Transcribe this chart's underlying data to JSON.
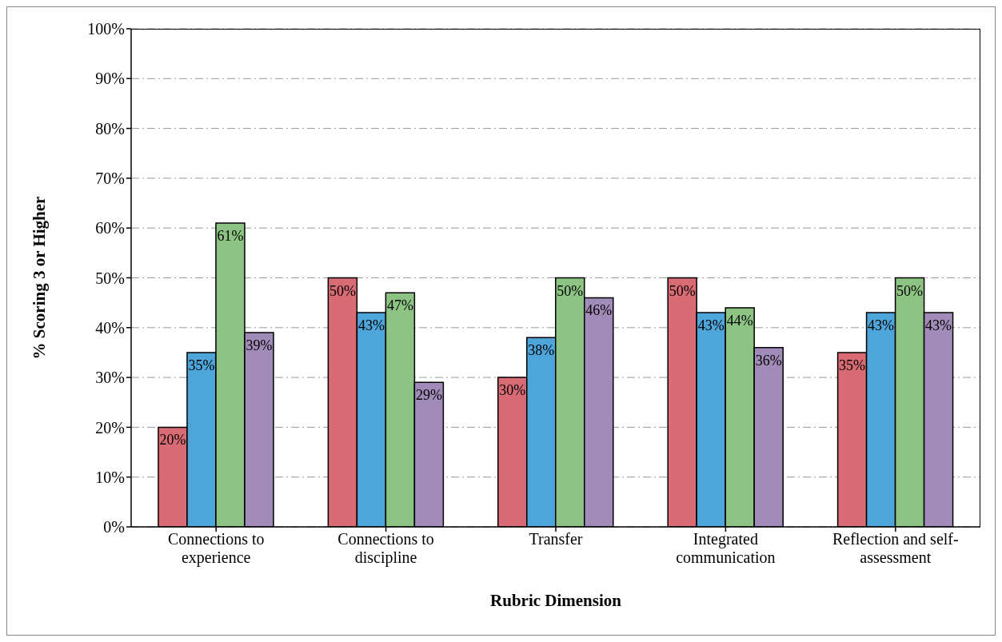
{
  "chart_data": {
    "type": "bar",
    "xlabel": "Rubric Dimension",
    "ylabel": "% Scoring 3 or Higher",
    "categories": [
      "Connections to experience",
      "Connections to discipline",
      "Transfer",
      "Integrated communication",
      "Reflection and self-assessment"
    ],
    "series": [
      {
        "color": "#d96b74",
        "values": [
          20,
          50,
          30,
          50,
          35
        ],
        "value_labels": [
          "20%",
          "50%",
          "30%",
          "50%",
          "35%"
        ]
      },
      {
        "color": "#4ea5d9",
        "values": [
          35,
          43,
          38,
          43,
          43
        ],
        "value_labels": [
          "35%",
          "43%",
          "38%",
          "43%",
          "43%"
        ]
      },
      {
        "color": "#8dc483",
        "values": [
          61,
          47,
          50,
          44,
          50
        ],
        "value_labels": [
          "61%",
          "47%",
          "50%",
          "44%",
          "50%"
        ]
      },
      {
        "color": "#a18bb9",
        "values": [
          39,
          29,
          46,
          36,
          43
        ],
        "value_labels": [
          "39%",
          "29%",
          "46%",
          "36%",
          "43%"
        ]
      }
    ],
    "ylim": [
      0,
      100
    ],
    "yticks": [
      {
        "value": 0,
        "label": "0%"
      },
      {
        "value": 10,
        "label": "10%"
      },
      {
        "value": 20,
        "label": "20%"
      },
      {
        "value": 30,
        "label": "30%"
      },
      {
        "value": 40,
        "label": "40%"
      },
      {
        "value": 50,
        "label": "50%"
      },
      {
        "value": 60,
        "label": "60%"
      },
      {
        "value": 70,
        "label": "70%"
      },
      {
        "value": 80,
        "label": "80%"
      },
      {
        "value": 90,
        "label": "90%"
      },
      {
        "value": 100,
        "label": "100%"
      }
    ],
    "grid": "y",
    "legend": false
  }
}
